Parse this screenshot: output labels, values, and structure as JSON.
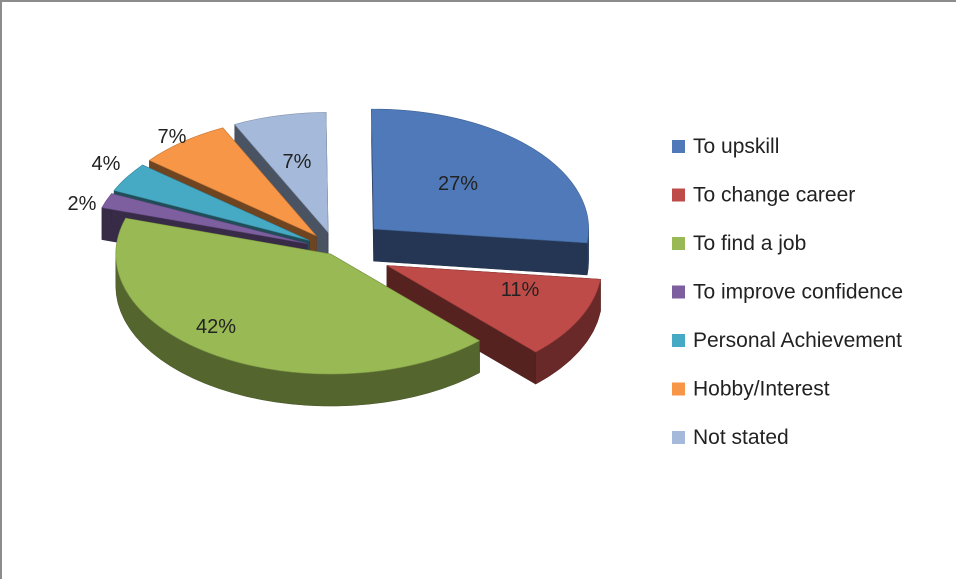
{
  "chart_data": {
    "type": "pie",
    "variant": "3d-exploded",
    "title": "",
    "legend_position": "right",
    "slices": [
      {
        "label": "To upskill",
        "value": 27,
        "display": "27%",
        "color": "#4F79B8"
      },
      {
        "label": "To change career",
        "value": 11,
        "display": "11%",
        "color": "#BE4B48"
      },
      {
        "label": "To find a job",
        "value": 42,
        "display": "42%",
        "color": "#98B954"
      },
      {
        "label": "To improve confidence",
        "value": 2,
        "display": "2%",
        "color": "#7D5FA0"
      },
      {
        "label": "Personal Achievement",
        "value": 4,
        "display": "4%",
        "color": "#46AAC4"
      },
      {
        "label": "Hobby/Interest",
        "value": 7,
        "display": "7%",
        "color": "#F79646"
      },
      {
        "label": "Not stated",
        "value": 7,
        "display": "7%",
        "color": "#A5B9DA"
      }
    ]
  }
}
